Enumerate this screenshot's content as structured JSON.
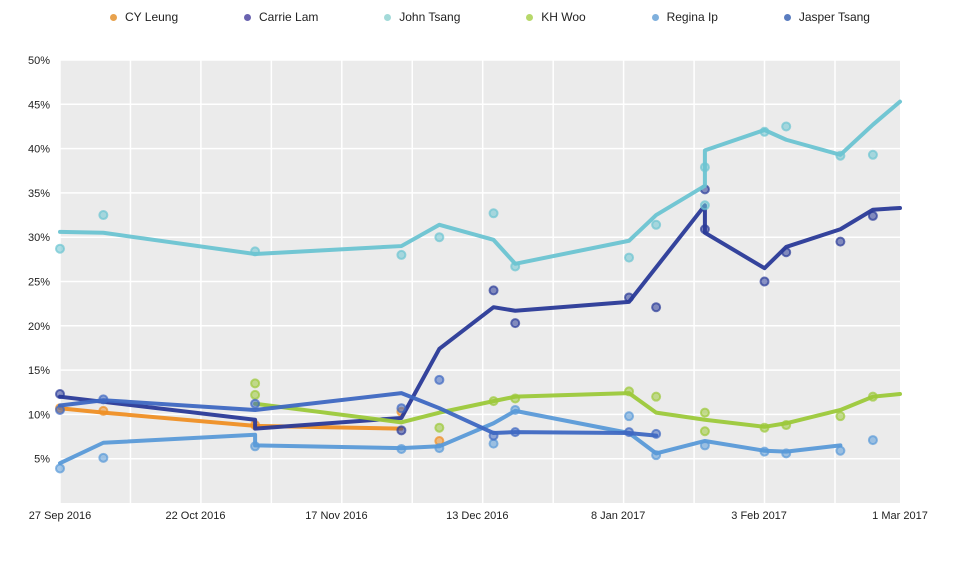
{
  "chart_data": {
    "type": "line",
    "xlabel": "",
    "ylabel": "",
    "xlim": [
      "2016-09-27",
      "2017-03-01"
    ],
    "ylim": [
      0,
      50
    ],
    "x_ticks": [
      {
        "date": "2016-09-27",
        "label": "27 Sep 2016"
      },
      {
        "date": "2016-10-22",
        "label": "22 Oct 2016"
      },
      {
        "date": "2016-11-17",
        "label": "17 Nov 2016"
      },
      {
        "date": "2016-12-13",
        "label": "13 Dec 2016"
      },
      {
        "date": "2017-01-08",
        "label": "8 Jan 2017"
      },
      {
        "date": "2017-02-03",
        "label": "3 Feb 2017"
      },
      {
        "date": "2017-03-01",
        "label": "1 Mar 2017"
      }
    ],
    "y_ticks": [
      {
        "value": 5,
        "label": "5%"
      },
      {
        "value": 10,
        "label": "10%"
      },
      {
        "value": 15,
        "label": "15%"
      },
      {
        "value": 20,
        "label": "20%"
      },
      {
        "value": 25,
        "label": "25%"
      },
      {
        "value": 30,
        "label": "30%"
      },
      {
        "value": 35,
        "label": "35%"
      },
      {
        "value": 40,
        "label": "40%"
      },
      {
        "value": 45,
        "label": "45%"
      },
      {
        "value": 50,
        "label": "50%"
      }
    ],
    "grid": true,
    "legend_position": "top",
    "series": [
      {
        "name": "CY Leung",
        "color": "#ef8f24",
        "line": [
          [
            "2016-09-27",
            10.7
          ],
          [
            "2016-10-05",
            10.2
          ],
          [
            "2016-11-02",
            8.7
          ],
          [
            "2016-11-29",
            8.4
          ]
        ],
        "points": [
          [
            "2016-09-27",
            10.7
          ],
          [
            "2016-10-05",
            10.4
          ],
          [
            "2016-11-02",
            8.8
          ],
          [
            "2016-11-29",
            10.3
          ],
          [
            "2016-12-06",
            7.0
          ]
        ]
      },
      {
        "name": "Carrie Lam",
        "color": "#2a3a98",
        "line": [
          [
            "2016-09-27",
            12.0
          ],
          [
            "2016-11-02",
            9.4
          ],
          [
            "2016-11-02",
            8.4
          ],
          [
            "2016-11-29",
            9.6
          ],
          [
            "2016-12-06",
            17.4
          ],
          [
            "2016-12-16",
            22.1
          ],
          [
            "2016-12-20",
            21.7
          ],
          [
            "2017-01-10",
            22.7
          ],
          [
            "2017-01-24",
            33.6
          ],
          [
            "2017-01-24",
            30.5
          ],
          [
            "2017-02-04",
            26.5
          ],
          [
            "2017-02-08",
            28.9
          ],
          [
            "2017-02-18",
            30.9
          ],
          [
            "2017-02-24",
            33.1
          ],
          [
            "2017-03-01",
            33.3
          ]
        ],
        "points": [
          [
            "2016-09-27",
            12.3
          ],
          [
            "2016-11-29",
            8.2
          ],
          [
            "2016-12-16",
            24.0
          ],
          [
            "2016-12-20",
            20.3
          ],
          [
            "2017-01-10",
            23.2
          ],
          [
            "2017-01-15",
            22.1
          ],
          [
            "2017-01-24",
            35.4
          ],
          [
            "2017-01-24",
            30.9
          ],
          [
            "2017-02-04",
            25.0
          ],
          [
            "2017-02-08",
            28.3
          ],
          [
            "2017-02-18",
            29.5
          ],
          [
            "2017-02-24",
            32.4
          ]
        ]
      },
      {
        "name": "John Tsang",
        "color": "#6cc4d2",
        "line": [
          [
            "2016-09-27",
            30.6
          ],
          [
            "2016-10-05",
            30.5
          ],
          [
            "2016-11-02",
            28.1
          ],
          [
            "2016-11-29",
            29.0
          ],
          [
            "2016-12-06",
            31.4
          ],
          [
            "2016-12-16",
            29.7
          ],
          [
            "2016-12-20",
            27.0
          ],
          [
            "2017-01-10",
            29.6
          ],
          [
            "2017-01-15",
            32.5
          ],
          [
            "2017-01-24",
            35.8
          ],
          [
            "2017-01-24",
            39.8
          ],
          [
            "2017-02-04",
            42.1
          ],
          [
            "2017-02-08",
            41.0
          ],
          [
            "2017-02-18",
            39.3
          ],
          [
            "2017-02-24",
            42.7
          ],
          [
            "2017-03-01",
            45.3
          ]
        ],
        "points": [
          [
            "2016-09-27",
            28.7
          ],
          [
            "2016-10-05",
            32.5
          ],
          [
            "2016-11-02",
            28.4
          ],
          [
            "2016-11-29",
            28.0
          ],
          [
            "2016-12-06",
            30.0
          ],
          [
            "2016-12-16",
            32.7
          ],
          [
            "2016-12-20",
            26.7
          ],
          [
            "2017-01-10",
            27.7
          ],
          [
            "2017-01-15",
            31.4
          ],
          [
            "2017-01-24",
            37.9
          ],
          [
            "2017-01-24",
            33.6
          ],
          [
            "2017-02-04",
            41.9
          ],
          [
            "2017-02-08",
            42.5
          ],
          [
            "2017-02-18",
            39.2
          ],
          [
            "2017-02-24",
            39.3
          ]
        ]
      },
      {
        "name": "KH Woo",
        "color": "#9cc93a",
        "line": [
          [
            "2016-11-02",
            11.2
          ],
          [
            "2016-11-29",
            9.1
          ],
          [
            "2016-12-06",
            10.2
          ],
          [
            "2016-12-16",
            11.5
          ],
          [
            "2016-12-20",
            12.0
          ],
          [
            "2017-01-10",
            12.4
          ],
          [
            "2017-01-15",
            10.2
          ],
          [
            "2017-01-24",
            9.4
          ],
          [
            "2017-02-04",
            8.6
          ],
          [
            "2017-02-08",
            9.0
          ],
          [
            "2017-02-18",
            10.5
          ],
          [
            "2017-02-24",
            12.0
          ],
          [
            "2017-03-01",
            12.3
          ]
        ],
        "points": [
          [
            "2016-11-02",
            13.5
          ],
          [
            "2016-11-02",
            12.2
          ],
          [
            "2016-12-06",
            8.5
          ],
          [
            "2016-12-16",
            11.5
          ],
          [
            "2016-12-20",
            11.8
          ],
          [
            "2017-01-10",
            12.6
          ],
          [
            "2017-01-15",
            12.0
          ],
          [
            "2017-01-24",
            10.2
          ],
          [
            "2017-01-24",
            8.1
          ],
          [
            "2017-02-04",
            8.5
          ],
          [
            "2017-02-08",
            8.8
          ],
          [
            "2017-02-18",
            9.8
          ],
          [
            "2017-02-24",
            12.0
          ]
        ]
      },
      {
        "name": "Regina Ip",
        "color": "#5a9ad8",
        "line": [
          [
            "2016-09-27",
            4.5
          ],
          [
            "2016-10-05",
            6.8
          ],
          [
            "2016-11-02",
            7.7
          ],
          [
            "2016-11-02",
            6.5
          ],
          [
            "2016-11-29",
            6.2
          ],
          [
            "2016-12-06",
            6.4
          ],
          [
            "2016-12-16",
            9.0
          ],
          [
            "2016-12-20",
            10.4
          ],
          [
            "2017-01-10",
            7.9
          ],
          [
            "2017-01-15",
            5.6
          ],
          [
            "2017-01-24",
            7.0
          ],
          [
            "2017-02-04",
            5.9
          ],
          [
            "2017-02-08",
            5.8
          ],
          [
            "2017-02-18",
            6.5
          ]
        ],
        "points": [
          [
            "2016-09-27",
            3.9
          ],
          [
            "2016-10-05",
            5.1
          ],
          [
            "2016-11-02",
            6.4
          ],
          [
            "2016-11-29",
            6.1
          ],
          [
            "2016-12-06",
            6.2
          ],
          [
            "2016-12-16",
            6.7
          ],
          [
            "2016-12-20",
            10.5
          ],
          [
            "2017-01-10",
            9.8
          ],
          [
            "2017-01-15",
            5.4
          ],
          [
            "2017-01-24",
            6.5
          ],
          [
            "2017-02-04",
            5.8
          ],
          [
            "2017-02-08",
            5.6
          ],
          [
            "2017-02-18",
            5.9
          ],
          [
            "2017-02-24",
            7.1
          ]
        ]
      },
      {
        "name": "Jasper Tsang",
        "color": "#3e68c2",
        "line": [
          [
            "2016-09-27",
            11.0
          ],
          [
            "2016-10-05",
            11.6
          ],
          [
            "2016-11-02",
            10.5
          ],
          [
            "2016-11-29",
            12.4
          ],
          [
            "2016-12-06",
            10.7
          ],
          [
            "2016-12-16",
            7.9
          ],
          [
            "2016-12-20",
            8.0
          ],
          [
            "2017-01-10",
            7.9
          ],
          [
            "2017-01-15",
            7.6
          ]
        ],
        "points": [
          [
            "2016-09-27",
            10.5
          ],
          [
            "2016-10-05",
            11.7
          ],
          [
            "2016-11-02",
            11.2
          ],
          [
            "2016-11-29",
            10.7
          ],
          [
            "2016-12-06",
            13.9
          ],
          [
            "2016-12-16",
            7.6
          ],
          [
            "2016-12-20",
            8.0
          ],
          [
            "2017-01-10",
            8.0
          ],
          [
            "2017-01-15",
            7.8
          ]
        ]
      }
    ]
  }
}
